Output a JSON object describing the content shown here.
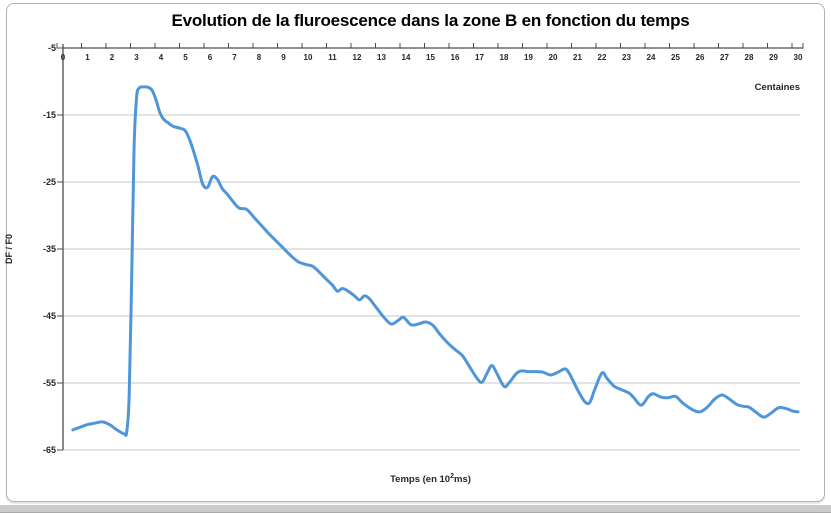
{
  "chart_data": {
    "type": "line",
    "title": "Evolution de la fluroescence dans la zone B en fonction du temps",
    "xlabel": "Temps (en 10²ms)",
    "xlabel_prefix": "Temps (en 10",
    "xlabel_exp": "2",
    "xlabel_suffix": "ms)",
    "ylabel": "DF / F0",
    "x_unit_label": "Centaines",
    "xlim": [
      0,
      30
    ],
    "ylim": [
      -65,
      -5
    ],
    "x_ticks": [
      0,
      1,
      2,
      3,
      4,
      5,
      6,
      7,
      8,
      9,
      10,
      11,
      12,
      13,
      14,
      15,
      16,
      17,
      18,
      19,
      20,
      21,
      22,
      23,
      24,
      25,
      26,
      27,
      28,
      29,
      30
    ],
    "y_ticks": [
      -5,
      -15,
      -25,
      -35,
      -45,
      -55,
      -65
    ],
    "grid": true,
    "legend": false,
    "line_color": "#4f96d9",
    "axis_color": "#4d4d4d",
    "grid_color": "#c9c9c9",
    "series": [
      {
        "name": "DF/F0",
        "points": [
          [
            0.4,
            -62.0
          ],
          [
            0.7,
            -61.6
          ],
          [
            1.0,
            -61.2
          ],
          [
            1.3,
            -61.0
          ],
          [
            1.6,
            -60.8
          ],
          [
            1.9,
            -61.2
          ],
          [
            2.2,
            -62.0
          ],
          [
            2.5,
            -62.6
          ],
          [
            2.6,
            -62.3
          ],
          [
            2.7,
            -57.0
          ],
          [
            2.8,
            -40.0
          ],
          [
            2.9,
            -20.0
          ],
          [
            3.0,
            -12.5
          ],
          [
            3.1,
            -11.0
          ],
          [
            3.3,
            -10.8
          ],
          [
            3.5,
            -10.9
          ],
          [
            3.65,
            -11.4
          ],
          [
            3.8,
            -12.8
          ],
          [
            3.95,
            -14.6
          ],
          [
            4.1,
            -15.6
          ],
          [
            4.3,
            -16.2
          ],
          [
            4.5,
            -16.7
          ],
          [
            4.8,
            -17.0
          ],
          [
            5.0,
            -17.4
          ],
          [
            5.2,
            -19.0
          ],
          [
            5.5,
            -22.5
          ],
          [
            5.7,
            -25.3
          ],
          [
            5.9,
            -25.8
          ],
          [
            6.1,
            -24.2
          ],
          [
            6.3,
            -24.6
          ],
          [
            6.5,
            -26.0
          ],
          [
            6.7,
            -26.8
          ],
          [
            7.0,
            -28.2
          ],
          [
            7.2,
            -28.9
          ],
          [
            7.5,
            -29.1
          ],
          [
            7.8,
            -30.3
          ],
          [
            8.1,
            -31.5
          ],
          [
            8.4,
            -32.7
          ],
          [
            8.7,
            -33.8
          ],
          [
            9.0,
            -34.9
          ],
          [
            9.3,
            -36.0
          ],
          [
            9.6,
            -36.9
          ],
          [
            9.9,
            -37.3
          ],
          [
            10.2,
            -37.6
          ],
          [
            10.5,
            -38.6
          ],
          [
            10.8,
            -39.7
          ],
          [
            11.0,
            -40.4
          ],
          [
            11.2,
            -41.3
          ],
          [
            11.4,
            -40.9
          ],
          [
            11.6,
            -41.2
          ],
          [
            11.9,
            -42.0
          ],
          [
            12.1,
            -42.6
          ],
          [
            12.3,
            -42.0
          ],
          [
            12.5,
            -42.4
          ],
          [
            12.8,
            -43.8
          ],
          [
            13.1,
            -45.2
          ],
          [
            13.4,
            -46.2
          ],
          [
            13.7,
            -45.6
          ],
          [
            13.9,
            -45.2
          ],
          [
            14.2,
            -46.3
          ],
          [
            14.5,
            -46.2
          ],
          [
            14.8,
            -45.9
          ],
          [
            15.1,
            -46.4
          ],
          [
            15.4,
            -47.8
          ],
          [
            15.7,
            -49.0
          ],
          [
            16.0,
            -50.0
          ],
          [
            16.3,
            -50.9
          ],
          [
            16.6,
            -52.6
          ],
          [
            16.9,
            -54.3
          ],
          [
            17.1,
            -54.9
          ],
          [
            17.3,
            -53.6
          ],
          [
            17.5,
            -52.4
          ],
          [
            17.7,
            -53.5
          ],
          [
            18.0,
            -55.5
          ],
          [
            18.2,
            -55.0
          ],
          [
            18.5,
            -53.6
          ],
          [
            18.7,
            -53.2
          ],
          [
            19.0,
            -53.3
          ],
          [
            19.3,
            -53.3
          ],
          [
            19.6,
            -53.4
          ],
          [
            19.9,
            -53.8
          ],
          [
            20.2,
            -53.4
          ],
          [
            20.5,
            -52.9
          ],
          [
            20.7,
            -53.8
          ],
          [
            21.0,
            -56.0
          ],
          [
            21.3,
            -57.8
          ],
          [
            21.5,
            -57.9
          ],
          [
            21.7,
            -56.0
          ],
          [
            22.0,
            -53.5
          ],
          [
            22.2,
            -54.3
          ],
          [
            22.5,
            -55.5
          ],
          [
            22.8,
            -56.0
          ],
          [
            23.1,
            -56.5
          ],
          [
            23.3,
            -57.2
          ],
          [
            23.6,
            -58.3
          ],
          [
            23.9,
            -57.0
          ],
          [
            24.1,
            -56.6
          ],
          [
            24.4,
            -57.1
          ],
          [
            24.7,
            -57.2
          ],
          [
            25.0,
            -57.0
          ],
          [
            25.3,
            -58.0
          ],
          [
            25.7,
            -59.0
          ],
          [
            26.0,
            -59.3
          ],
          [
            26.3,
            -58.6
          ],
          [
            26.6,
            -57.4
          ],
          [
            26.9,
            -56.8
          ],
          [
            27.2,
            -57.4
          ],
          [
            27.5,
            -58.2
          ],
          [
            27.8,
            -58.5
          ],
          [
            28.0,
            -58.6
          ],
          [
            28.3,
            -59.4
          ],
          [
            28.6,
            -60.1
          ],
          [
            28.9,
            -59.5
          ],
          [
            29.2,
            -58.7
          ],
          [
            29.5,
            -58.8
          ],
          [
            29.8,
            -59.2
          ],
          [
            30.0,
            -59.3
          ]
        ]
      }
    ]
  }
}
